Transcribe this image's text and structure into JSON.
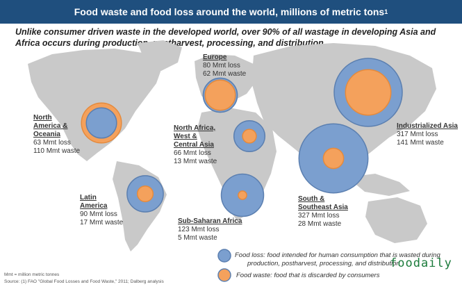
{
  "header": {
    "title": "Food waste and food loss around the world, millions of metric tons",
    "title_sup": "1",
    "subtitle": "Unlike consumer driven waste in the developed world, over 90% of all wastage in developing Asia and Africa occurs during production, postharvest, processing, and distribution"
  },
  "colors": {
    "loss": "#7b9fcf",
    "waste": "#f4a15c",
    "title_bg": "#1f4f7e",
    "land": "#c9c9c9"
  },
  "chart_data": {
    "type": "bubble",
    "unit": "millions of metric tons",
    "regions": [
      {
        "name": "North America & Oceania",
        "loss": 63,
        "waste": 110
      },
      {
        "name": "Europe",
        "loss": 80,
        "waste": 62
      },
      {
        "name": "North Africa, West & Central Asia",
        "loss": 66,
        "waste": 13
      },
      {
        "name": "Industrialized Asia",
        "loss": 317,
        "waste": 141
      },
      {
        "name": "South & Southeast Asia",
        "loss": 327,
        "waste": 28
      },
      {
        "name": "Latin America",
        "loss": 90,
        "waste": 17
      },
      {
        "name": "Sub-Saharan Africa",
        "loss": 123,
        "waste": 5
      }
    ]
  },
  "labels": {
    "na": {
      "name_l1": "North",
      "name_l2": "America &",
      "name_l3": "Oceania",
      "loss": "63 Mmt loss",
      "waste": "110 Mmt waste"
    },
    "eu": {
      "name": "Europe",
      "loss": "80 Mmt loss",
      "waste": "62 Mmt waste"
    },
    "naf": {
      "name_l1": "North Africa,",
      "name_l2": "West &",
      "name_l3": "Central Asia",
      "loss": "66 Mmt loss",
      "waste": "13 Mmt waste"
    },
    "ia": {
      "name": "Industrialized Asia",
      "loss": "317 Mmt loss",
      "waste": "141 Mmt waste"
    },
    "ssa_asia": {
      "name_l1": "South &",
      "name_l2": "Southeast Asia",
      "loss": "327 Mmt loss",
      "waste": "28 Mmt waste"
    },
    "la": {
      "name_l1": "Latin",
      "name_l2": "America",
      "loss": "90 Mmt loss",
      "waste": "17 Mmt waste"
    },
    "saf": {
      "name": "Sub-Saharan Africa",
      "loss": "123 Mmt loss",
      "waste": "5 Mmt waste"
    }
  },
  "legend": {
    "loss_l1": "Food loss: food intended for human consumption that is wasted during",
    "loss_l2": "production, postharvest, processing, and distribution",
    "waste": "Food waste: food that is discarded by consumers"
  },
  "footnotes": {
    "mmt": "Mmt = million metric tonnes",
    "source": "Source: (1) FAO \"Global Food Losses and Food Waste,\" 2011; Dalberg analysis"
  },
  "watermark": "foodaily"
}
